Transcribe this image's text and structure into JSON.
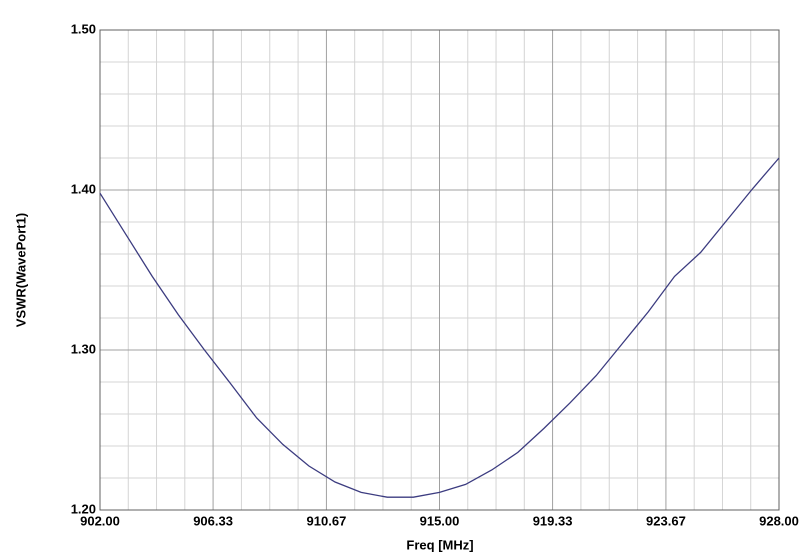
{
  "chart_data": {
    "type": "line",
    "xlabel": "Freq [MHz]",
    "ylabel": "VSWR(WavePort1)",
    "x": [
      902,
      903,
      904,
      905,
      906,
      907,
      908,
      909,
      910,
      911,
      912,
      913,
      914,
      915,
      916,
      917,
      918,
      919,
      920,
      921,
      922,
      923,
      924,
      925,
      926,
      927,
      928
    ],
    "series": [
      {
        "color": "#3c3c80",
        "values": [
          1.398,
          1.372,
          1.346,
          1.322,
          1.3,
          1.279,
          1.2575,
          1.241,
          1.2275,
          1.2175,
          1.211,
          1.208,
          1.208,
          1.211,
          1.216,
          1.225,
          1.236,
          1.251,
          1.267,
          1.284,
          1.304,
          1.324,
          1.346,
          1.361,
          1.381,
          1.401,
          1.42
        ]
      }
    ],
    "xlim": [
      902,
      928
    ],
    "xticks": [
      {
        "value": 902,
        "label": "902.00"
      },
      906.33,
      910.67,
      {
        "value": 915,
        "label": "915.00"
      },
      919.33,
      923.67,
      {
        "value": 928,
        "label": "928.00"
      }
    ],
    "ylim": [
      1.2,
      1.5
    ],
    "yticks": [
      {
        "value": 1.2,
        "label": "1.20"
      },
      {
        "value": 1.3,
        "label": "1.30"
      },
      {
        "value": 1.4,
        "label": "1.40"
      },
      {
        "value": 1.5,
        "label": "1.50"
      }
    ],
    "grid": true
  }
}
